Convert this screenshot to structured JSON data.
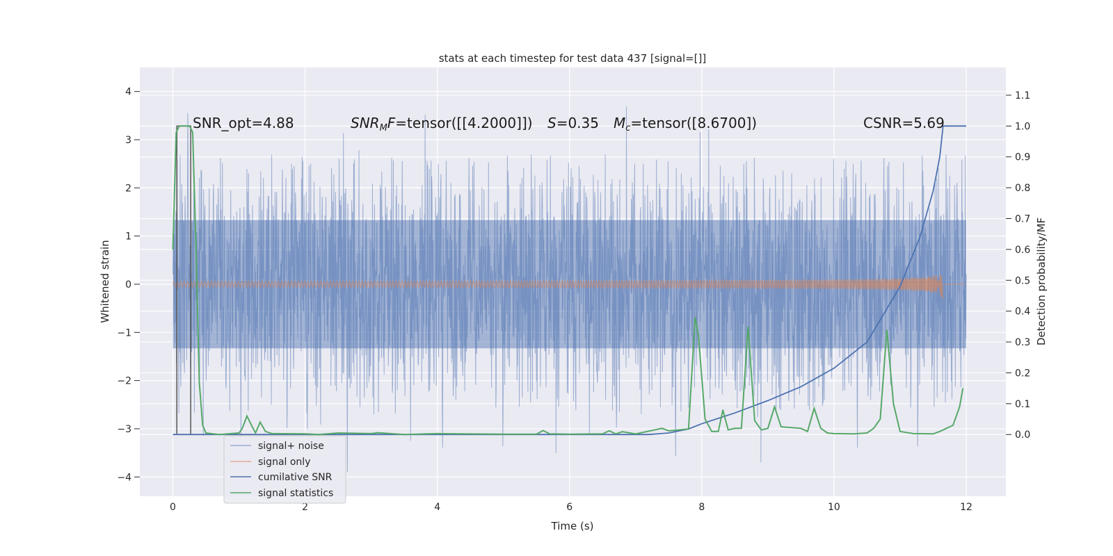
{
  "chart_data": {
    "type": "line",
    "title": "stats at each timestep for test data 437 [signal=[]]",
    "xlabel": "Time (s)",
    "ylabel": "Whitened strain",
    "ylabel_right": "Detection probability/MF",
    "xlim": [
      -0.5,
      12.6
    ],
    "ylim": [
      -4.4,
      4.5
    ],
    "ylim_right": [
      -0.2,
      1.19
    ],
    "xticks": [
      0,
      2,
      4,
      6,
      8,
      10,
      12
    ],
    "xtick_labels": [
      "0",
      "2",
      "4",
      "6",
      "8",
      "10",
      "12"
    ],
    "yticks": [
      4,
      3,
      2,
      1,
      0,
      -1,
      -2,
      -3,
      -4
    ],
    "ytick_labels": [
      "4",
      "3",
      "2",
      "1",
      "0",
      "−1",
      "−2",
      "−3",
      "−4"
    ],
    "yticks_right": [
      1.1,
      1.0,
      0.9,
      0.8,
      0.7,
      0.6,
      0.5,
      0.4,
      0.3,
      0.2,
      0.1,
      0.0
    ],
    "ytick_labels_right": [
      "1.1",
      "1.0",
      "0.9",
      "0.8",
      "0.7",
      "0.6",
      "0.5",
      "0.4",
      "0.3",
      "0.2",
      "0.1",
      "0.0"
    ],
    "grid": true,
    "legend_position": "lower-left",
    "annotations": {
      "snr_opt": "SNR_opt=4.88",
      "snr_mf_sym": "SNR",
      "snr_mf_sub": "M",
      "snr_mf_f": "F",
      "snr_mf_val": "=tensor([[4.2000]])",
      "s_sym": "S",
      "s_val": "=0.35",
      "mc_sym": "M",
      "mc_sub": "c",
      "mc_val": "=tensor([8.6700])",
      "csnr": "CSNR=5.69"
    },
    "series": [
      {
        "name": "signal+ noise",
        "axis": "left",
        "color": "#4c72b0",
        "envelope": {
          "t_start": 0,
          "t_end": 12,
          "lower": -1.33,
          "upper": 1.33,
          "spike_max": 4.1,
          "spike_min": -4.0
        }
      },
      {
        "name": "signal only",
        "axis": "left",
        "color": "#dd8452",
        "chirp": {
          "t_start": 0,
          "t_merge": 11.65,
          "peak_amp": 0.65
        }
      },
      {
        "name": "cumilative SNR",
        "axis": "right",
        "color": "#4c72b0",
        "x": [
          0,
          7.2,
          7.5,
          7.8,
          8.0,
          8.5,
          9.0,
          9.5,
          10.0,
          10.5,
          11.0,
          11.3,
          11.5,
          11.6,
          11.65,
          12
        ],
        "y": [
          0,
          0,
          0.005,
          0.018,
          0.035,
          0.07,
          0.11,
          0.155,
          0.215,
          0.3,
          0.48,
          0.64,
          0.79,
          0.9,
          1.0,
          1.0
        ]
      },
      {
        "name": "signal statistics",
        "axis": "right",
        "color": "#55a868",
        "x": [
          0,
          0.05,
          0.1,
          0.15,
          0.2,
          0.25,
          0.3,
          0.35,
          0.4,
          0.45,
          0.5,
          0.7,
          1.0,
          1.05,
          1.12,
          1.2,
          1.25,
          1.32,
          1.4,
          1.5,
          2.0,
          2.2,
          2.5,
          3.0,
          3.1,
          3.5,
          4.0,
          5.0,
          5.5,
          5.6,
          5.7,
          6.0,
          6.5,
          6.6,
          6.7,
          6.8,
          7.0,
          7.4,
          7.5,
          7.8,
          7.9,
          7.95,
          8.05,
          8.15,
          8.25,
          8.32,
          8.4,
          8.5,
          8.6,
          8.7,
          8.8,
          8.9,
          9.0,
          9.1,
          9.2,
          9.5,
          9.6,
          9.7,
          9.8,
          9.9,
          10.0,
          10.3,
          10.5,
          10.6,
          10.7,
          10.8,
          10.9,
          11.0,
          11.2,
          11.5,
          11.6,
          11.8,
          11.9,
          11.95
        ],
        "y": [
          0.6,
          0.98,
          1.0,
          1.0,
          1.0,
          1.0,
          0.98,
          0.6,
          0.17,
          0.03,
          0.005,
          0.0,
          0.005,
          0.02,
          0.06,
          0.025,
          0.005,
          0.04,
          0.01,
          0.003,
          0.002,
          0.0,
          0.005,
          0.003,
          0.006,
          0.0,
          0.003,
          0.001,
          0.001,
          0.013,
          0.002,
          0.001,
          0.002,
          0.012,
          0.002,
          0.009,
          0.002,
          0.02,
          0.012,
          0.018,
          0.38,
          0.32,
          0.05,
          0.01,
          0.01,
          0.08,
          0.015,
          0.02,
          0.02,
          0.35,
          0.045,
          0.015,
          0.02,
          0.09,
          0.025,
          0.02,
          0.01,
          0.085,
          0.02,
          0.005,
          0.003,
          0.002,
          0.005,
          0.02,
          0.05,
          0.34,
          0.1,
          0.01,
          0.003,
          0.002,
          0.01,
          0.03,
          0.09,
          0.15
        ]
      },
      {
        "name": "",
        "axis": "right",
        "color": "#555555",
        "kind": "window-marker",
        "x": [
          0.06,
          0.27
        ]
      }
    ]
  }
}
